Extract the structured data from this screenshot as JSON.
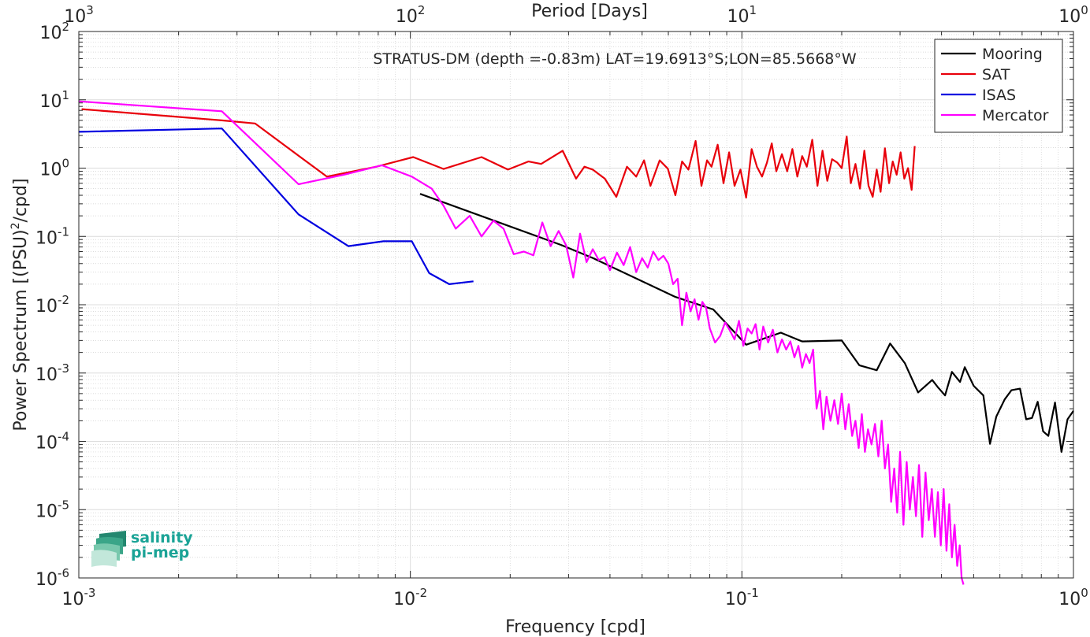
{
  "chart_data": {
    "type": "line",
    "title": "STRATUS-DM (depth =-0.83m) LAT=19.6913°S;LON=85.5668°W",
    "xlabel": "Frequency [cpd]",
    "ylabel": "Power Spectrum [(PSU)",
    "ylabel_sup": "2",
    "ylabel_tail": "/cpd]",
    "top_xlabel": "Period [Days]",
    "xscale": "log",
    "yscale": "log",
    "xlim": [
      0.001,
      1
    ],
    "ylim": [
      1e-06,
      100
    ],
    "grid": true,
    "legend_position": "top-right",
    "x_ticks": [
      {
        "value": 0.001,
        "base": "10",
        "exp": "-3"
      },
      {
        "value": 0.01,
        "base": "10",
        "exp": "-2"
      },
      {
        "value": 0.1,
        "base": "10",
        "exp": "-1"
      },
      {
        "value": 1,
        "base": "10",
        "exp": "0"
      }
    ],
    "top_x_ticks": [
      {
        "value": 0.001,
        "base": "10",
        "exp": "3"
      },
      {
        "value": 0.01,
        "base": "10",
        "exp": "2"
      },
      {
        "value": 0.1,
        "base": "10",
        "exp": "1"
      },
      {
        "value": 1,
        "base": "10",
        "exp": "0"
      }
    ],
    "y_ticks": [
      {
        "value": 1e-06,
        "base": "10",
        "exp": "-6"
      },
      {
        "value": 1e-05,
        "base": "10",
        "exp": "-5"
      },
      {
        "value": 0.0001,
        "base": "10",
        "exp": "-4"
      },
      {
        "value": 0.001,
        "base": "10",
        "exp": "-3"
      },
      {
        "value": 0.01,
        "base": "10",
        "exp": "-2"
      },
      {
        "value": 0.1,
        "base": "10",
        "exp": "-1"
      },
      {
        "value": 1,
        "base": "10",
        "exp": "0"
      },
      {
        "value": 10,
        "base": "10",
        "exp": "1"
      },
      {
        "value": 100,
        "base": "10",
        "exp": "2"
      }
    ],
    "series": [
      {
        "name": "Mooring",
        "color": "#000000",
        "x": [
          0.0107,
          0.0285,
          0.0356,
          0.063,
          0.082,
          0.103,
          0.131,
          0.152,
          0.2,
          0.226,
          0.255,
          0.28,
          0.31,
          0.34,
          0.375,
          0.39,
          0.41,
          0.43,
          0.455,
          0.47,
          0.5,
          0.535,
          0.56,
          0.585,
          0.62,
          0.65,
          0.69,
          0.72,
          0.75,
          0.78,
          0.81,
          0.84,
          0.88,
          0.92,
          0.96,
          1.0
        ],
        "y": [
          0.42,
          0.075,
          0.048,
          0.013,
          0.0085,
          0.0026,
          0.0039,
          0.0029,
          0.003,
          0.0013,
          0.0011,
          0.0027,
          0.0014,
          0.00052,
          0.00079,
          0.00062,
          0.00047,
          0.00104,
          0.00074,
          0.00122,
          0.00065,
          0.00047,
          9.2e-05,
          0.00023,
          0.00041,
          0.00056,
          0.00059,
          0.00021,
          0.00022,
          0.00038,
          0.00014,
          0.00012,
          0.00037,
          7e-05,
          0.00021,
          0.00028
        ]
      },
      {
        "name": "SAT",
        "color": "#e8000b",
        "x": [
          0.00102,
          0.0027,
          0.0034,
          0.0056,
          0.0079,
          0.0102,
          0.0126,
          0.0164,
          0.0197,
          0.0227,
          0.0248,
          0.0288,
          0.0316,
          0.0335,
          0.0355,
          0.0386,
          0.0418,
          0.045,
          0.048,
          0.0507,
          0.053,
          0.0565,
          0.0598,
          0.063,
          0.066,
          0.069,
          0.0725,
          0.0755,
          0.0785,
          0.081,
          0.0845,
          0.088,
          0.0915,
          0.095,
          0.099,
          0.103,
          0.107,
          0.111,
          0.115,
          0.119,
          0.123,
          0.127,
          0.132,
          0.137,
          0.142,
          0.147,
          0.152,
          0.157,
          0.163,
          0.169,
          0.175,
          0.181,
          0.187,
          0.194,
          0.2,
          0.207,
          0.213,
          0.22,
          0.227,
          0.234,
          0.241,
          0.248,
          0.255,
          0.262,
          0.27,
          0.278,
          0.285,
          0.293,
          0.301,
          0.309,
          0.317,
          0.325,
          0.332
        ],
        "y": [
          7.3,
          5.0,
          4.5,
          0.75,
          1.05,
          1.45,
          0.97,
          1.45,
          0.95,
          1.25,
          1.15,
          1.8,
          0.7,
          1.05,
          0.95,
          0.7,
          0.38,
          1.05,
          0.75,
          1.3,
          0.55,
          1.3,
          0.98,
          0.4,
          1.25,
          0.95,
          2.5,
          0.55,
          1.3,
          1.05,
          2.2,
          0.6,
          1.7,
          0.55,
          0.95,
          0.37,
          1.9,
          1.05,
          0.75,
          1.2,
          2.3,
          0.9,
          1.6,
          0.9,
          1.9,
          0.75,
          1.5,
          1.05,
          2.6,
          0.55,
          1.8,
          0.65,
          1.35,
          1.2,
          1.0,
          2.9,
          0.6,
          1.15,
          0.5,
          1.8,
          0.55,
          0.38,
          0.95,
          0.45,
          1.95,
          0.6,
          1.25,
          0.8,
          1.7,
          0.7,
          1.0,
          0.48,
          2.1
        ]
      },
      {
        "name": "ISAS",
        "color": "#0000e0",
        "x": [
          0.001,
          0.0027,
          0.0046,
          0.0065,
          0.0083,
          0.0101,
          0.0114,
          0.0131,
          0.0155
        ],
        "y": [
          3.4,
          3.8,
          0.21,
          0.072,
          0.085,
          0.085,
          0.029,
          0.02,
          0.022
        ]
      },
      {
        "name": "Mercator",
        "color": "#ff00ff",
        "x": [
          0.001,
          0.0027,
          0.0046,
          0.0063,
          0.0082,
          0.0101,
          0.0116,
          0.0126,
          0.0137,
          0.0151,
          0.0164,
          0.0178,
          0.0191,
          0.0205,
          0.022,
          0.0235,
          0.025,
          0.0265,
          0.028,
          0.0295,
          0.031,
          0.0325,
          0.034,
          0.0355,
          0.037,
          0.0385,
          0.04,
          0.042,
          0.044,
          0.046,
          0.048,
          0.05,
          0.052,
          0.054,
          0.056,
          0.058,
          0.06,
          0.062,
          0.064,
          0.066,
          0.068,
          0.07,
          0.072,
          0.074,
          0.076,
          0.078,
          0.08,
          0.083,
          0.086,
          0.089,
          0.092,
          0.095,
          0.098,
          0.101,
          0.104,
          0.107,
          0.11,
          0.113,
          0.116,
          0.12,
          0.124,
          0.128,
          0.132,
          0.136,
          0.14,
          0.144,
          0.148,
          0.152,
          0.156,
          0.16,
          0.164,
          0.168,
          0.172,
          0.176,
          0.18,
          0.185,
          0.19,
          0.195,
          0.2,
          0.205,
          0.21,
          0.215,
          0.22,
          0.225,
          0.23,
          0.235,
          0.24,
          0.246,
          0.252,
          0.258,
          0.264,
          0.27,
          0.276,
          0.282,
          0.288,
          0.294,
          0.3,
          0.307,
          0.314,
          0.321,
          0.328,
          0.335,
          0.342,
          0.35,
          0.358,
          0.366,
          0.374,
          0.382,
          0.39,
          0.398,
          0.406,
          0.414,
          0.422,
          0.43,
          0.438,
          0.446,
          0.454,
          0.46,
          0.466
        ],
        "y": [
          9.5,
          6.8,
          0.58,
          0.8,
          1.1,
          0.75,
          0.5,
          0.28,
          0.13,
          0.2,
          0.1,
          0.17,
          0.13,
          0.055,
          0.06,
          0.053,
          0.16,
          0.072,
          0.12,
          0.074,
          0.025,
          0.11,
          0.042,
          0.065,
          0.045,
          0.05,
          0.032,
          0.058,
          0.038,
          0.07,
          0.03,
          0.048,
          0.035,
          0.06,
          0.045,
          0.052,
          0.04,
          0.02,
          0.024,
          0.005,
          0.015,
          0.008,
          0.012,
          0.006,
          0.011,
          0.009,
          0.0045,
          0.0028,
          0.0035,
          0.0055,
          0.0042,
          0.0031,
          0.0058,
          0.0025,
          0.0045,
          0.0038,
          0.0052,
          0.0022,
          0.0048,
          0.0028,
          0.0043,
          0.002,
          0.0031,
          0.0022,
          0.0029,
          0.0017,
          0.0025,
          0.0012,
          0.0019,
          0.0014,
          0.0022,
          0.0003,
          0.00055,
          0.00015,
          0.00045,
          0.0002,
          0.0004,
          0.00018,
          0.0005,
          0.00015,
          0.00035,
          0.00012,
          0.0002,
          8e-05,
          0.00025,
          7e-05,
          0.00015,
          9e-05,
          0.00018,
          6e-05,
          0.0002,
          4e-05,
          9e-05,
          1.3e-05,
          4e-05,
          9e-06,
          7e-05,
          6e-06,
          5e-05,
          1e-05,
          3e-05,
          8e-06,
          4.5e-05,
          4e-06,
          3.5e-05,
          7e-06,
          2e-05,
          4e-06,
          1.8e-05,
          3e-06,
          2e-05,
          2.5e-06,
          1.2e-05,
          2e-06,
          6e-06,
          1.5e-06,
          3e-06,
          1e-06,
          8e-07
        ]
      }
    ]
  },
  "logo": {
    "line1": "salinity",
    "line2": "pi-mep"
  }
}
